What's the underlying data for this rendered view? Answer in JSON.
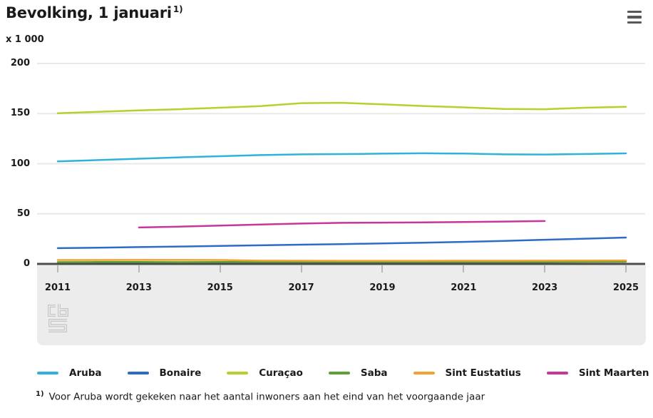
{
  "header": {
    "title": "Bevolking, 1 januari",
    "footnote_marker": "1)",
    "unit_label": "x 1 000",
    "menu_icon": "hamburger-icon"
  },
  "watermark": "cbs-logo",
  "footnote": {
    "marker": "1)",
    "text": "Voor Aruba wordt gekeken naar het aantal inwoners aan het eind van het voorgaande jaar"
  },
  "chart_data": {
    "type": "line",
    "title": "Bevolking, 1 januari",
    "unit": "x 1 000",
    "x": [
      2011,
      2012,
      2013,
      2014,
      2015,
      2016,
      2017,
      2018,
      2019,
      2020,
      2021,
      2022,
      2023,
      2024,
      2025
    ],
    "x_tick_labels": [
      "2011",
      "2013",
      "2015",
      "2017",
      "2019",
      "2021",
      "2023",
      "2025"
    ],
    "y_ticks": [
      0,
      50,
      100,
      150,
      200
    ],
    "ylim": [
      0,
      200
    ],
    "grid": true,
    "legend_position": "bottom",
    "series": [
      {
        "name": "Aruba",
        "color": "#30b1dc",
        "values": [
          102.3,
          103.6,
          105.0,
          106.3,
          107.5,
          108.6,
          109.3,
          109.6,
          110.0,
          110.4,
          110.1,
          109.3,
          109.2,
          109.7,
          110.3
        ]
      },
      {
        "name": "Bonaire",
        "color": "#2e6bc6",
        "values": [
          15.7,
          16.2,
          16.8,
          17.4,
          18.0,
          18.6,
          19.2,
          19.8,
          20.5,
          21.2,
          22.0,
          22.9,
          24.1,
          25.2,
          26.3
        ]
      },
      {
        "name": "Curaçao",
        "color": "#b4d22e",
        "values": [
          150.3,
          151.8,
          153.2,
          154.4,
          155.9,
          157.5,
          160.4,
          160.8,
          159.2,
          157.6,
          156.2,
          154.6,
          154.4,
          155.9,
          156.8
        ]
      },
      {
        "name": "Saba",
        "color": "#5ba234",
        "values": [
          1.8,
          1.9,
          1.9,
          1.8,
          1.9,
          1.9,
          2.0,
          2.0,
          1.9,
          1.9,
          1.9,
          2.0,
          2.0,
          2.1,
          2.2
        ]
      },
      {
        "name": "Sint Eustatius",
        "color": "#f2a132",
        "values": [
          3.9,
          3.9,
          4.0,
          4.0,
          3.9,
          3.3,
          3.2,
          3.1,
          3.1,
          3.1,
          3.2,
          3.2,
          3.3,
          3.4,
          3.5
        ]
      },
      {
        "name": "Sint Maarten",
        "color": "#c9359d",
        "values": [
          null,
          null,
          36.4,
          37.2,
          38.2,
          39.3,
          40.3,
          41.0,
          41.2,
          41.4,
          41.8,
          42.3,
          42.8,
          null,
          null
        ]
      }
    ]
  }
}
